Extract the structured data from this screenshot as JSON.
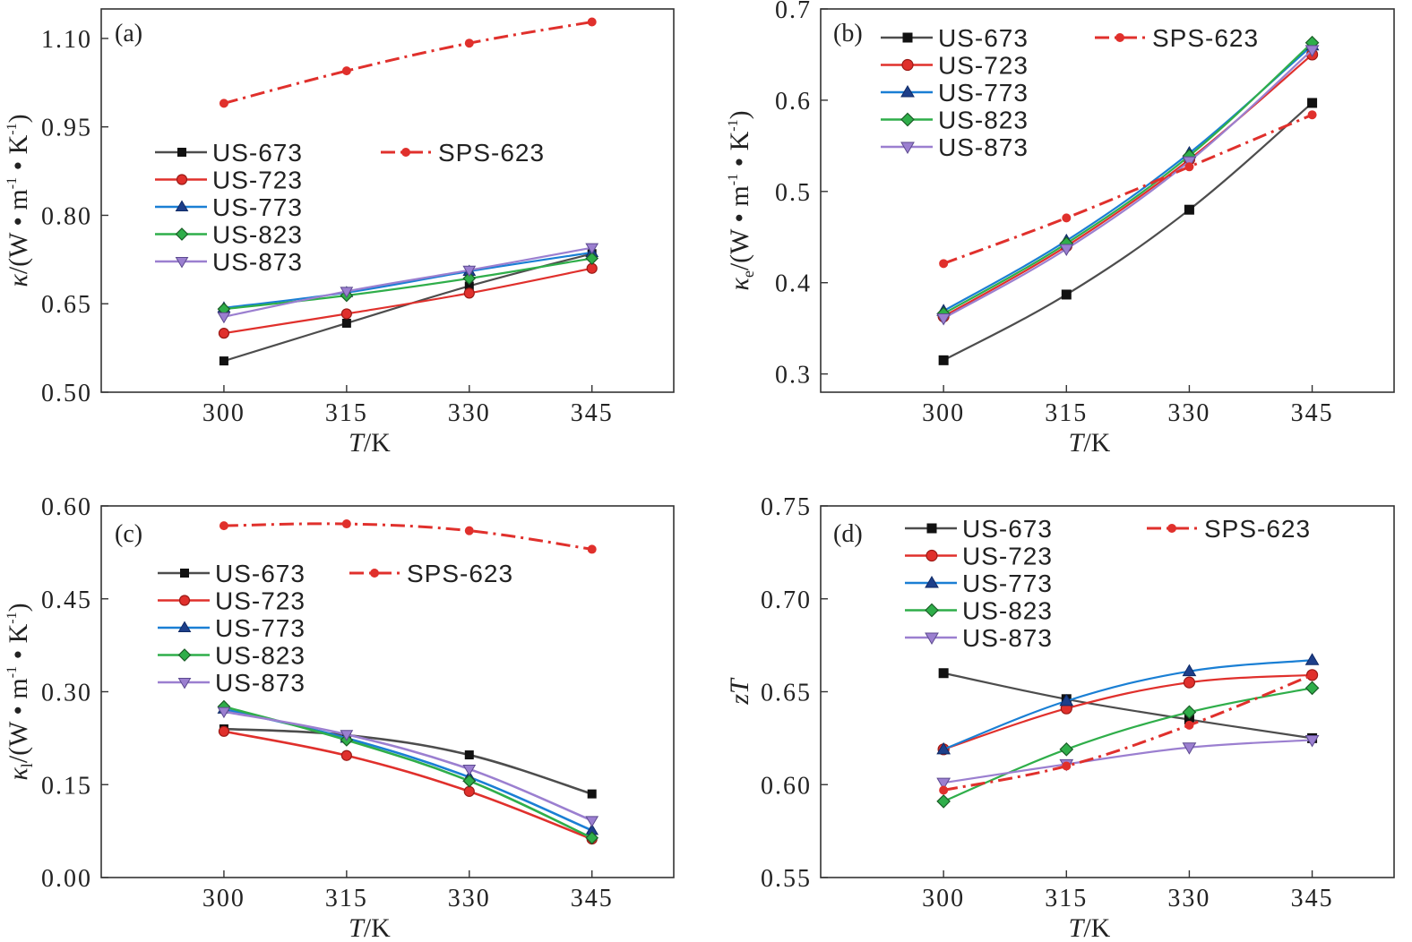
{
  "figure": {
    "xlabel_italic": "T",
    "xlabel_unit": "/K"
  },
  "colors": {
    "US-673": "#4d4d4d",
    "US-723": "#e0302c",
    "US-773": "#1a7fd4",
    "US-823": "#2fae4a",
    "US-873": "#9b7fd0",
    "SPS-623": "#e0302c"
  },
  "chart_data": [
    {
      "panel": "(a)",
      "type": "line",
      "x": [
        300,
        315,
        330,
        345
      ],
      "xticks": [
        "300",
        "315",
        "330",
        "345"
      ],
      "xlim": [
        285,
        355
      ],
      "ylim": [
        0.5,
        1.15
      ],
      "yticks": [
        "0.50",
        "0.65",
        "0.80",
        "0.95",
        "1.10"
      ],
      "ytick_values": [
        0.5,
        0.65,
        0.8,
        0.95,
        1.1
      ],
      "ylabel": {
        "symbol": "κ",
        "sub": "",
        "unit": "/(W • m",
        "exp1": "-1",
        "mid": " • K",
        "exp2": "-1",
        "end": ")"
      },
      "legend": [
        "US-673",
        "US-723",
        "US-773",
        "US-823",
        "US-873",
        "SPS-623"
      ],
      "series": [
        {
          "name": "US-673",
          "values": [
            0.553,
            0.617,
            0.68,
            0.735
          ]
        },
        {
          "name": "US-723",
          "values": [
            0.6,
            0.633,
            0.668,
            0.71
          ]
        },
        {
          "name": "US-773",
          "values": [
            0.643,
            0.669,
            0.705,
            0.737
          ]
        },
        {
          "name": "US-823",
          "values": [
            0.641,
            0.664,
            0.693,
            0.727
          ]
        },
        {
          "name": "US-873",
          "values": [
            0.628,
            0.671,
            0.707,
            0.745
          ]
        },
        {
          "name": "SPS-623",
          "values": [
            0.99,
            1.045,
            1.092,
            1.128
          ]
        }
      ]
    },
    {
      "panel": "(b)",
      "type": "line",
      "x": [
        300,
        315,
        330,
        345
      ],
      "xticks": [
        "300",
        "315",
        "330",
        "345"
      ],
      "xlim": [
        285,
        355
      ],
      "ylim": [
        0.28,
        0.7
      ],
      "yticks": [
        "0.3",
        "0.4",
        "0.5",
        "0.6",
        "0.7"
      ],
      "ytick_values": [
        0.3,
        0.4,
        0.5,
        0.6,
        0.7
      ],
      "ylabel": {
        "symbol": "κ",
        "sub": "e",
        "unit": "/(W • m",
        "exp1": "-1",
        "mid": " • K",
        "exp2": "-1",
        "end": ")"
      },
      "legend": [
        "US-673",
        "US-723",
        "US-773",
        "US-823",
        "US-873",
        "SPS-623"
      ],
      "series": [
        {
          "name": "US-673",
          "values": [
            0.315,
            0.387,
            0.48,
            0.597
          ]
        },
        {
          "name": "US-723",
          "values": [
            0.363,
            0.44,
            0.535,
            0.65
          ]
        },
        {
          "name": "US-773",
          "values": [
            0.369,
            0.446,
            0.542,
            0.66
          ]
        },
        {
          "name": "US-823",
          "values": [
            0.366,
            0.443,
            0.539,
            0.663
          ]
        },
        {
          "name": "US-873",
          "values": [
            0.361,
            0.437,
            0.533,
            0.655
          ]
        },
        {
          "name": "SPS-623",
          "values": [
            0.421,
            0.471,
            0.527,
            0.584
          ]
        }
      ]
    },
    {
      "panel": "(c)",
      "type": "line",
      "x": [
        300,
        315,
        330,
        345
      ],
      "xticks": [
        "300",
        "315",
        "330",
        "345"
      ],
      "xlim": [
        285,
        355
      ],
      "ylim": [
        0.0,
        0.6
      ],
      "yticks": [
        "0.00",
        "0.15",
        "0.30",
        "0.45",
        "0.60"
      ],
      "ytick_values": [
        0.0,
        0.15,
        0.3,
        0.45,
        0.6
      ],
      "ylabel": {
        "symbol": "κ",
        "sub": "l",
        "unit": "/(W • m",
        "exp1": "-1",
        "mid": " • K",
        "exp2": "-1",
        "end": ")"
      },
      "legend": [
        "US-673",
        "US-723",
        "US-773",
        "US-823",
        "US-873",
        "SPS-623"
      ],
      "series": [
        {
          "name": "US-673",
          "values": [
            0.24,
            0.23,
            0.198,
            0.135
          ]
        },
        {
          "name": "US-723",
          "values": [
            0.236,
            0.197,
            0.139,
            0.062
          ]
        },
        {
          "name": "US-773",
          "values": [
            0.272,
            0.225,
            0.162,
            0.076
          ]
        },
        {
          "name": "US-823",
          "values": [
            0.276,
            0.222,
            0.156,
            0.064
          ]
        },
        {
          "name": "US-873",
          "values": [
            0.268,
            0.231,
            0.175,
            0.092
          ]
        },
        {
          "name": "SPS-623",
          "values": [
            0.568,
            0.571,
            0.56,
            0.53
          ]
        }
      ]
    },
    {
      "panel": "(d)",
      "type": "line",
      "x": [
        300,
        315,
        330,
        345
      ],
      "xticks": [
        "300",
        "315",
        "330",
        "345"
      ],
      "xlim": [
        285,
        355
      ],
      "ylim": [
        0.55,
        0.75
      ],
      "yticks": [
        "0.55",
        "0.60",
        "0.65",
        "0.70",
        "0.75"
      ],
      "ytick_values": [
        0.55,
        0.6,
        0.65,
        0.7,
        0.75
      ],
      "ylabel": {
        "symbol": "zT",
        "sub": "",
        "unit": "",
        "exp1": "",
        "mid": "",
        "exp2": "",
        "end": ""
      },
      "legend": [
        "US-673",
        "US-723",
        "US-773",
        "US-823",
        "US-873",
        "SPS-623"
      ],
      "series": [
        {
          "name": "US-673",
          "values": [
            0.66,
            0.646,
            0.635,
            0.625
          ]
        },
        {
          "name": "US-723",
          "values": [
            0.619,
            0.641,
            0.655,
            0.659
          ]
        },
        {
          "name": "US-773",
          "values": [
            0.619,
            0.645,
            0.661,
            0.667
          ]
        },
        {
          "name": "US-823",
          "values": [
            0.591,
            0.619,
            0.639,
            0.652
          ]
        },
        {
          "name": "US-873",
          "values": [
            0.601,
            0.611,
            0.62,
            0.624
          ]
        },
        {
          "name": "SPS-623",
          "values": [
            0.597,
            0.61,
            0.632,
            0.659
          ]
        }
      ]
    }
  ]
}
